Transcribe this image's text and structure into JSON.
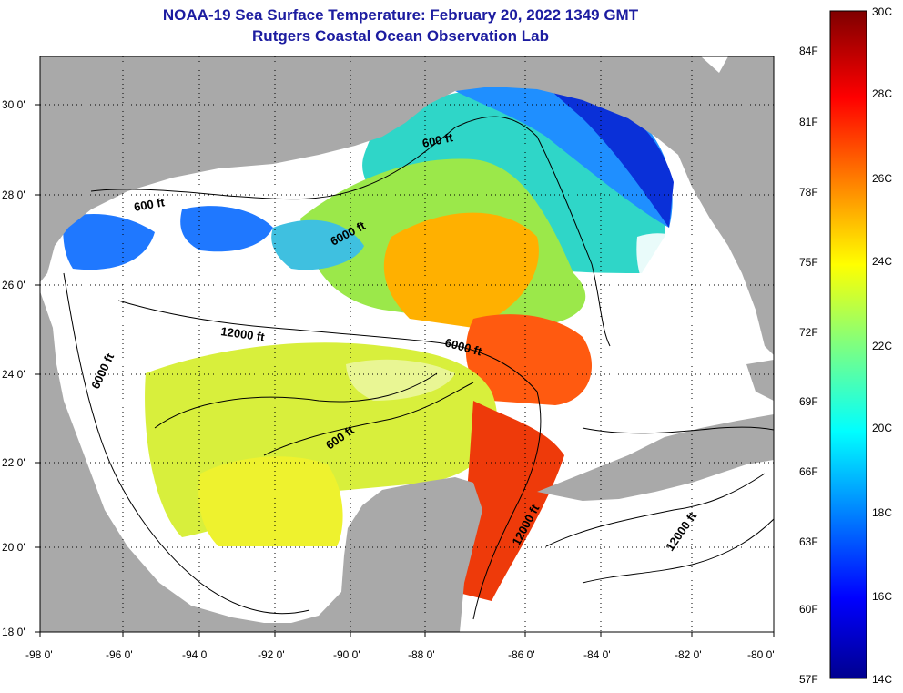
{
  "title": "NOAA-19 Sea Surface Temperature:  February 20, 2022 1349 GMT",
  "subtitle": "Rutgers Coastal Ocean Observation Lab",
  "lat_ticks": [
    "30 0'",
    "28 0'",
    "26 0'",
    "24 0'",
    "22 0'",
    "20 0'",
    "18 0'"
  ],
  "lon_ticks": [
    "-98 0'",
    "-96 0'",
    "-94 0'",
    "-92 0'",
    "-90 0'",
    "-88 0'",
    "-86 0'",
    "-84 0'",
    "-82 0'",
    "-80 0'"
  ],
  "contour_labels": [
    "600 ft",
    "600 ft",
    "6000 ft",
    "6000 ft",
    "6000 ft",
    "12000 ft",
    "600 ft",
    "12000 ft",
    "12000 ft"
  ],
  "colorbar": {
    "fahrenheit": [
      "84F",
      "81F",
      "78F",
      "75F",
      "72F",
      "69F",
      "66F",
      "63F",
      "60F",
      "57F"
    ],
    "celsius": [
      "30C",
      "28C",
      "26C",
      "24C",
      "22C",
      "20C",
      "18C",
      "16C",
      "14C"
    ]
  },
  "colors": {
    "title": "#1c1ca0",
    "land": "#a9a9a9",
    "no_data": "#ffffff"
  }
}
